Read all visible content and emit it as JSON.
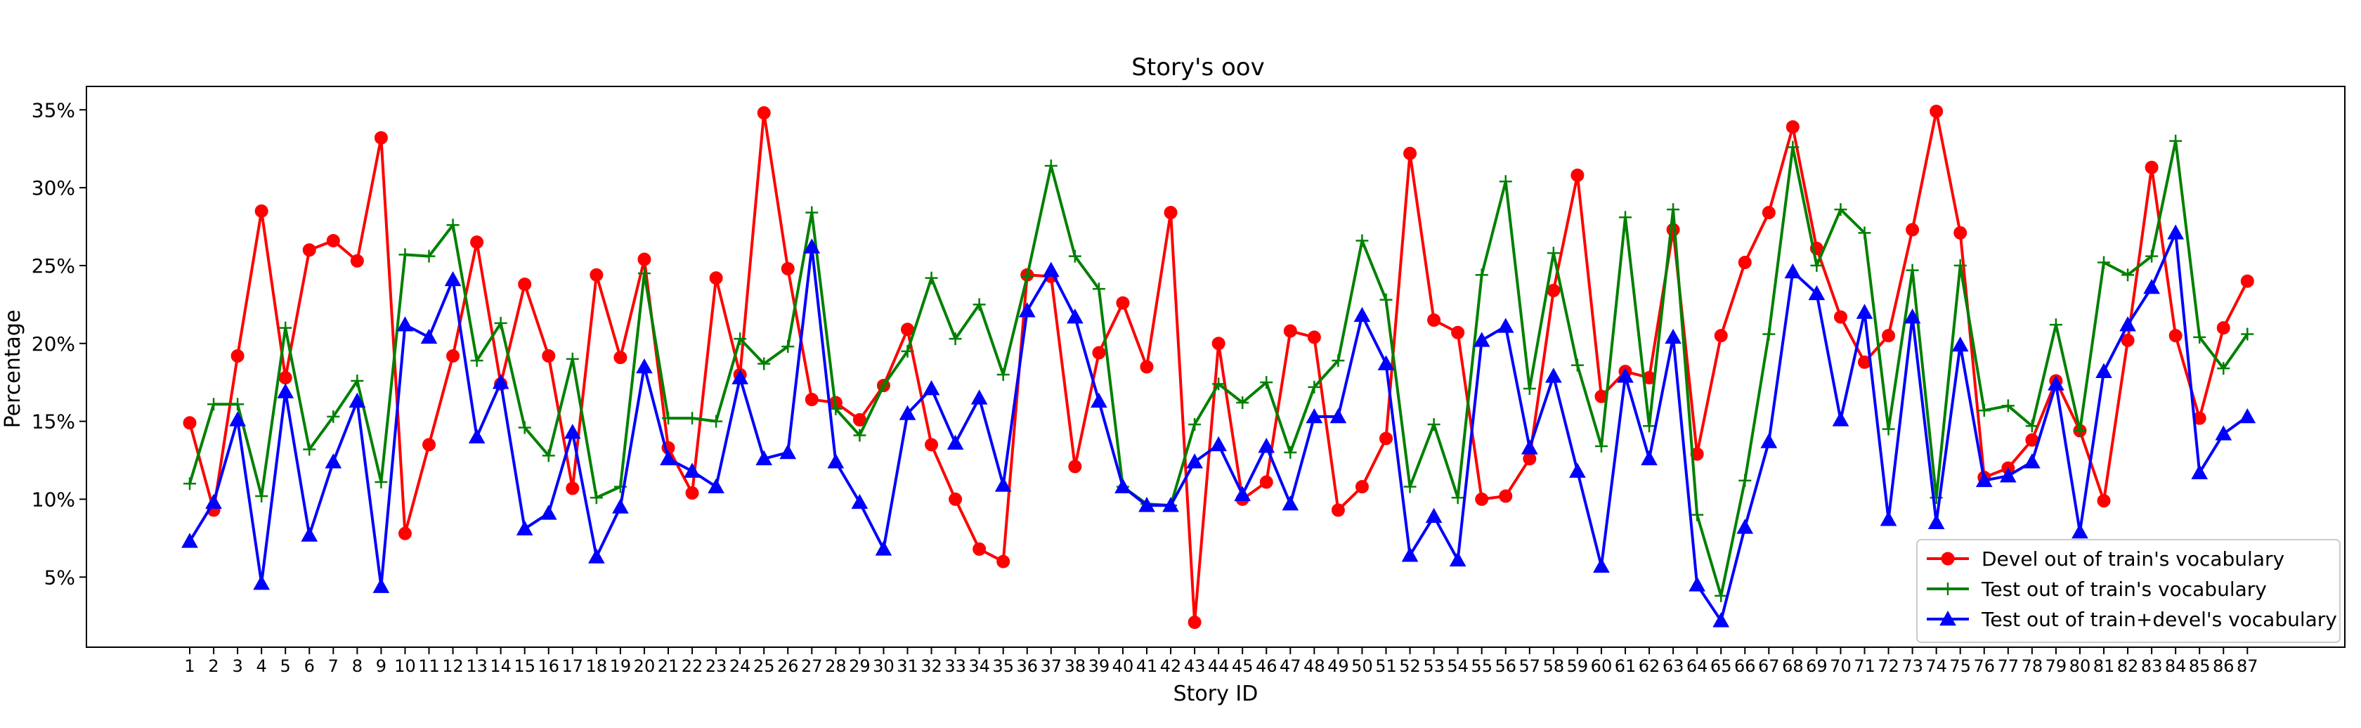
{
  "chart_data": {
    "type": "line",
    "title": "Story's oov",
    "xlabel": "Story ID",
    "ylabel": "Percentage",
    "ylim": [
      0.5,
      36.5
    ],
    "yticks": [
      5,
      10,
      15,
      20,
      25,
      30,
      35
    ],
    "ytick_labels": [
      "5%",
      "10%",
      "15%",
      "20%",
      "25%",
      "30%",
      "35%"
    ],
    "grid": false,
    "legend_position": "lower-right",
    "categories": [
      "1",
      "2",
      "3",
      "4",
      "5",
      "6",
      "7",
      "8",
      "9",
      "10",
      "11",
      "12",
      "13",
      "14",
      "15",
      "16",
      "17",
      "18",
      "19",
      "20",
      "21",
      "22",
      "23",
      "24",
      "25",
      "26",
      "27",
      "28",
      "29",
      "30",
      "31",
      "32",
      "33",
      "34",
      "35",
      "36",
      "37",
      "38",
      "39",
      "40",
      "41",
      "42",
      "43",
      "44",
      "45",
      "46",
      "47",
      "48",
      "49",
      "50",
      "51",
      "52",
      "53",
      "54",
      "55",
      "56",
      "57",
      "58",
      "59",
      "60",
      "61",
      "62",
      "63",
      "64",
      "65",
      "66",
      "67",
      "68",
      "69",
      "70",
      "71",
      "72",
      "73",
      "74",
      "75",
      "76",
      "77",
      "78",
      "79",
      "80",
      "81",
      "82",
      "83",
      "84",
      "85",
      "86",
      "87"
    ],
    "series": [
      {
        "name": "Devel out of train's vocabulary",
        "color": "#ff0000",
        "marker": "circle",
        "values": [
          14.9,
          9.3,
          19.2,
          28.5,
          17.8,
          26.0,
          26.6,
          25.3,
          33.2,
          7.8,
          13.5,
          19.2,
          26.5,
          17.4,
          23.8,
          19.2,
          10.7,
          24.4,
          19.1,
          25.4,
          13.3,
          10.4,
          24.2,
          18.0,
          34.8,
          24.8,
          16.4,
          16.2,
          15.1,
          17.3,
          20.9,
          13.5,
          10.0,
          6.8,
          6.0,
          24.4,
          24.3,
          12.1,
          19.4,
          22.6,
          18.5,
          28.4,
          2.1,
          20.0,
          10.0,
          11.1,
          20.8,
          20.4,
          9.3,
          10.8,
          13.9,
          32.2,
          21.5,
          20.7,
          10.0,
          10.2,
          12.6,
          23.4,
          30.8,
          16.6,
          18.2,
          17.8,
          27.3,
          12.9,
          20.5,
          25.2,
          28.4,
          33.9,
          26.1,
          21.7,
          18.8,
          20.5,
          27.3,
          34.9,
          27.1,
          11.4,
          12.0,
          13.8,
          17.6,
          14.4,
          9.9,
          20.2,
          31.3,
          20.5,
          15.2,
          21.0,
          24.0
        ]
      },
      {
        "name": "Test out of train's vocabulary",
        "color": "#008000",
        "marker": "plus",
        "values": [
          11.0,
          16.1,
          16.1,
          10.2,
          21.0,
          13.2,
          15.3,
          17.6,
          11.1,
          25.7,
          25.6,
          27.6,
          18.9,
          21.3,
          14.6,
          12.8,
          19.0,
          10.1,
          10.8,
          24.5,
          15.2,
          15.2,
          15.0,
          20.3,
          18.7,
          19.8,
          28.4,
          15.8,
          14.1,
          17.3,
          19.5,
          24.2,
          20.3,
          22.5,
          18.0,
          24.3,
          31.4,
          25.6,
          23.5,
          10.8,
          9.7,
          9.6,
          14.8,
          17.4,
          16.2,
          17.5,
          13.0,
          17.2,
          18.9,
          26.6,
          22.8,
          10.8,
          14.8,
          10.1,
          24.4,
          30.4,
          17.1,
          25.8,
          18.6,
          13.4,
          28.1,
          14.7,
          28.6,
          9.0,
          3.8,
          11.2,
          20.6,
          32.6,
          25.0,
          28.6,
          27.1,
          14.5,
          24.7,
          10.1,
          25.0,
          15.7,
          16.0,
          14.7,
          21.2,
          14.4,
          25.2,
          24.4,
          25.6,
          33.0,
          20.4,
          18.4,
          20.6
        ]
      },
      {
        "name": "Test out of train+devel's vocabulary",
        "color": "#0000ff",
        "marker": "triangle",
        "values": [
          7.3,
          9.8,
          15.1,
          4.6,
          16.9,
          7.7,
          12.4,
          16.3,
          4.4,
          21.2,
          20.4,
          24.1,
          14.0,
          17.5,
          8.1,
          9.1,
          14.3,
          6.3,
          9.5,
          18.5,
          12.6,
          11.8,
          10.8,
          17.8,
          12.6,
          13.0,
          26.2,
          12.4,
          9.8,
          6.8,
          15.5,
          17.1,
          13.6,
          16.5,
          10.9,
          22.1,
          24.7,
          21.7,
          16.3,
          10.8,
          9.6,
          9.6,
          12.4,
          13.5,
          10.3,
          13.4,
          9.7,
          15.3,
          15.3,
          21.8,
          18.7,
          6.4,
          8.9,
          6.1,
          20.2,
          21.1,
          13.3,
          17.9,
          11.8,
          5.7,
          17.9,
          12.6,
          20.4,
          4.5,
          2.2,
          8.2,
          13.7,
          24.6,
          23.2,
          15.1,
          22.0,
          8.7,
          21.7,
          8.5,
          19.9,
          11.2,
          11.5,
          12.4,
          17.4,
          7.9,
          18.2,
          21.2,
          23.6,
          27.1,
          11.7,
          14.2,
          15.3
        ]
      }
    ]
  }
}
